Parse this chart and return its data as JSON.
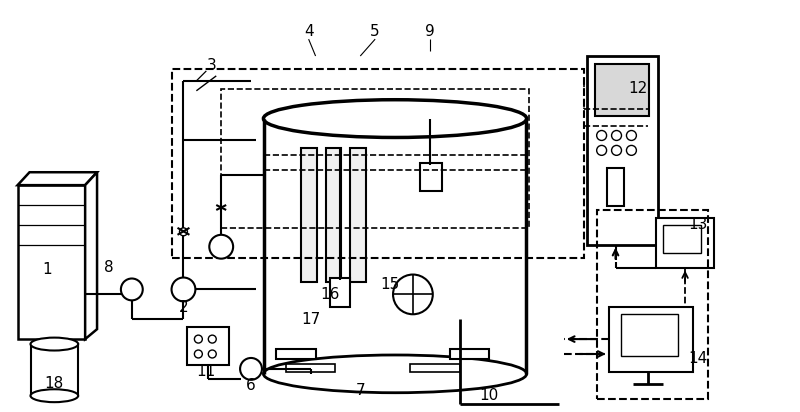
{
  "figsize": [
    8.0,
    4.12
  ],
  "dpi": 100,
  "bg_color": "#ffffff"
}
